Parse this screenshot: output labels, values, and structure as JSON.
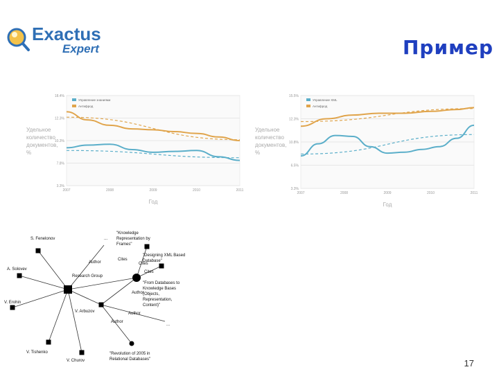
{
  "slide": {
    "title": "Пример",
    "page_number": "17"
  },
  "logo": {
    "line1": "Exactus",
    "line2": "Expert"
  },
  "colors": {
    "title": "#1f3fbf",
    "series_blue": "#5aaec9",
    "series_orange": "#e0a44b",
    "grid": "#e6e6e6",
    "logo_blue": "#2f6fb5"
  },
  "chart_data": [
    {
      "type": "line",
      "ylabel": "Удельное количество документов, %",
      "xlabel": "Год",
      "y_ticks": [
        "18.4%",
        "12.3%",
        "10.3%",
        "7.8%",
        "3.3%"
      ],
      "x_ticks": [
        "2007",
        "2008",
        "2009",
        "2010",
        "2011"
      ],
      "legend": [
        "Управление знаниями",
        "Антифрод"
      ],
      "series": [
        {
          "name": "Управление знаниями",
          "color": "#5aaec9",
          "style": "solid",
          "points": [
            [
              0,
              0.58
            ],
            [
              0.12,
              0.55
            ],
            [
              0.25,
              0.54
            ],
            [
              0.38,
              0.6
            ],
            [
              0.5,
              0.63
            ],
            [
              0.62,
              0.62
            ],
            [
              0.75,
              0.61
            ],
            [
              0.88,
              0.68
            ],
            [
              1,
              0.72
            ]
          ]
        },
        {
          "name": "Управление знаниями (тренд)",
          "color": "#5aaec9",
          "style": "dashed",
          "points": [
            [
              0,
              0.61
            ],
            [
              1,
              0.69
            ]
          ]
        },
        {
          "name": "Антифрод",
          "color": "#e0a44b",
          "style": "solid",
          "points": [
            [
              0,
              0.18
            ],
            [
              0.12,
              0.27
            ],
            [
              0.25,
              0.33
            ],
            [
              0.38,
              0.37
            ],
            [
              0.5,
              0.38
            ],
            [
              0.62,
              0.4
            ],
            [
              0.75,
              0.42
            ],
            [
              0.88,
              0.46
            ],
            [
              1,
              0.5
            ]
          ]
        },
        {
          "name": "Антифрод (тренд)",
          "color": "#e0a44b",
          "style": "dashed",
          "points": [
            [
              0,
              0.24
            ],
            [
              1,
              0.49
            ]
          ]
        }
      ]
    },
    {
      "type": "line",
      "ylabel": "Удельное количество документов, %",
      "xlabel": "Год",
      "y_ticks": [
        "15.5%",
        "12.3%",
        "10.8%",
        "6.5%",
        "3.3%"
      ],
      "x_ticks": [
        "2007",
        "2008",
        "2009",
        "2010",
        "2011"
      ],
      "legend": [
        "Управление XML",
        "Антифрод"
      ],
      "series": [
        {
          "name": "Управление XML",
          "color": "#5aaec9",
          "style": "solid",
          "points": [
            [
              0,
              0.65
            ],
            [
              0.1,
              0.52
            ],
            [
              0.2,
              0.43
            ],
            [
              0.3,
              0.44
            ],
            [
              0.4,
              0.55
            ],
            [
              0.5,
              0.62
            ],
            [
              0.6,
              0.61
            ],
            [
              0.7,
              0.58
            ],
            [
              0.8,
              0.55
            ],
            [
              0.9,
              0.46
            ],
            [
              1,
              0.32
            ]
          ]
        },
        {
          "name": "Управление XML (тренд)",
          "color": "#5aaec9",
          "style": "dashed",
          "points": [
            [
              0,
              0.63
            ],
            [
              1,
              0.42
            ]
          ]
        },
        {
          "name": "Антифрод",
          "color": "#e0a44b",
          "style": "solid",
          "points": [
            [
              0,
              0.33
            ],
            [
              0.15,
              0.25
            ],
            [
              0.3,
              0.21
            ],
            [
              0.45,
              0.19
            ],
            [
              0.6,
              0.19
            ],
            [
              0.75,
              0.17
            ],
            [
              0.9,
              0.15
            ],
            [
              1,
              0.13
            ]
          ]
        },
        {
          "name": "Антифрод (тренд)",
          "color": "#e0a44b",
          "style": "dashed",
          "points": [
            [
              0,
              0.28
            ],
            [
              1,
              0.14
            ]
          ]
        }
      ]
    }
  ],
  "graph": {
    "nodes": [
      {
        "id": "fenelonov",
        "label": "S. Fenelonov"
      },
      {
        "id": "solovev",
        "label": "A. Solovev"
      },
      {
        "id": "erohin",
        "label": "V. Erohin"
      },
      {
        "id": "tishenko",
        "label": "V. Tishenko"
      },
      {
        "id": "churov",
        "label": "V. Churov"
      },
      {
        "id": "group",
        "label": "Research Group"
      },
      {
        "id": "arbuzov",
        "label": "V. Arbuzov"
      },
      {
        "id": "krframes",
        "label": "\"Knowledge Representation by Frames\""
      },
      {
        "id": "xmldb",
        "label": "\"Designing XML Based Database\""
      },
      {
        "id": "fromdb",
        "label": "\"From Databases to Knowledge Bases (Objects, Representation, Content)\""
      },
      {
        "id": "revolution",
        "label": "\"Revolution of 2005 in Relational Databases\""
      }
    ],
    "edge_labels": [
      "Author",
      "Cites",
      "Cites",
      "Cites",
      "Author",
      "Author",
      "Author",
      "...",
      "..."
    ]
  }
}
